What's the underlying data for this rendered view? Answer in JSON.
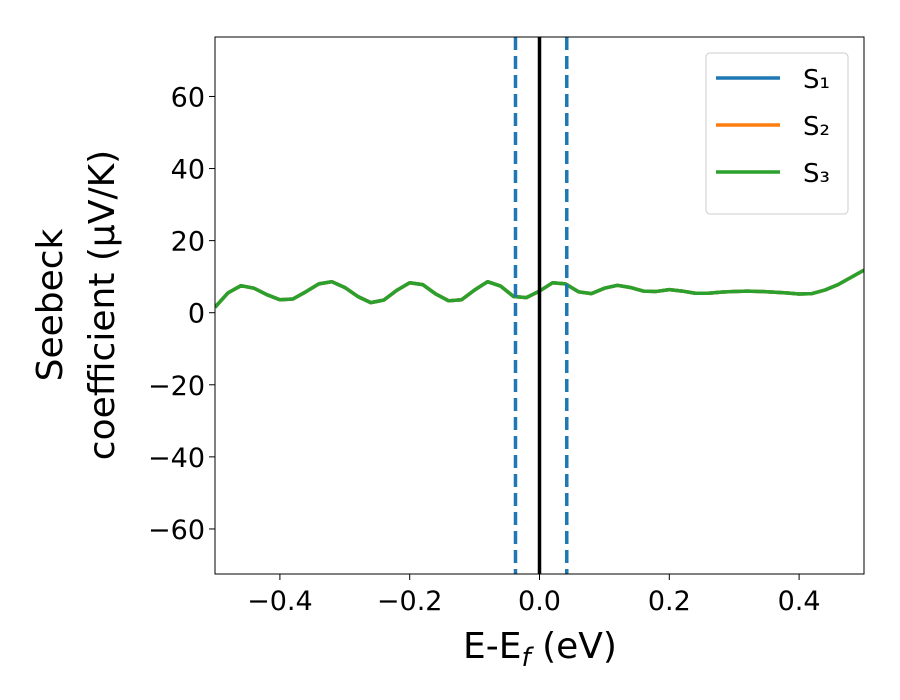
{
  "chart_data": {
    "type": "line",
    "xlabel": [
      "E-E",
      "f",
      " (eV)"
    ],
    "ylabel": [
      "Seebeck",
      "coefficient  (μV/K)"
    ],
    "x": [
      -0.5,
      -0.48,
      -0.46,
      -0.44,
      -0.42,
      -0.4,
      -0.38,
      -0.36,
      -0.34,
      -0.32,
      -0.3,
      -0.28,
      -0.26,
      -0.24,
      -0.22,
      -0.2,
      -0.18,
      -0.16,
      -0.14,
      -0.12,
      -0.1,
      -0.08,
      -0.06,
      -0.04,
      -0.02,
      0,
      0.02,
      0.04,
      0.06,
      0.08,
      0.1,
      0.12,
      0.14,
      0.16,
      0.18,
      0.2,
      0.22,
      0.24,
      0.26,
      0.28,
      0.3,
      0.32,
      0.34,
      0.36,
      0.38,
      0.4,
      0.42,
      0.44,
      0.46,
      0.48,
      0.5
    ],
    "series": [
      {
        "name": "S₁",
        "color": "#1f77b4",
        "values": [
          1.5,
          5.5,
          7.5,
          6.8,
          5.0,
          3.6,
          3.8,
          5.8,
          8.0,
          8.6,
          7.0,
          4.5,
          2.8,
          3.5,
          6.2,
          8.3,
          7.8,
          5.2,
          3.3,
          3.6,
          6.3,
          8.6,
          7.4,
          4.5,
          4.2,
          6.0,
          8.3,
          8.0,
          5.8,
          5.3,
          6.8,
          7.6,
          7.0,
          6.0,
          5.9,
          6.4,
          6.0,
          5.4,
          5.4,
          5.7,
          5.9,
          6.0,
          5.9,
          5.7,
          5.5,
          5.2,
          5.3,
          6.3,
          7.8,
          9.8,
          11.8
        ]
      },
      {
        "name": "S₂",
        "color": "#ff7f0e",
        "values": [
          1.5,
          5.5,
          7.5,
          6.8,
          5.0,
          3.6,
          3.8,
          5.8,
          8.0,
          8.6,
          7.0,
          4.5,
          2.8,
          3.5,
          6.2,
          8.3,
          7.8,
          5.2,
          3.3,
          3.6,
          6.3,
          8.6,
          7.4,
          4.5,
          4.2,
          6.0,
          8.3,
          8.0,
          5.8,
          5.3,
          6.8,
          7.6,
          7.0,
          6.0,
          5.9,
          6.4,
          6.0,
          5.4,
          5.4,
          5.7,
          5.9,
          6.0,
          5.9,
          5.7,
          5.5,
          5.2,
          5.3,
          6.3,
          7.8,
          9.8,
          11.8
        ]
      },
      {
        "name": "S₃",
        "color": "#2ca02c",
        "values": [
          1.5,
          5.5,
          7.5,
          6.8,
          5.0,
          3.6,
          3.8,
          5.8,
          8.0,
          8.6,
          7.0,
          4.5,
          2.8,
          3.5,
          6.2,
          8.3,
          7.8,
          5.2,
          3.3,
          3.6,
          6.3,
          8.6,
          7.4,
          4.5,
          4.2,
          6.0,
          8.3,
          8.0,
          5.8,
          5.3,
          6.8,
          7.6,
          7.0,
          6.0,
          5.9,
          6.4,
          6.0,
          5.4,
          5.4,
          5.7,
          5.9,
          6.0,
          5.9,
          5.7,
          5.5,
          5.2,
          5.3,
          6.3,
          7.8,
          9.8,
          11.8
        ]
      }
    ],
    "vlines": [
      {
        "x": -0.037,
        "color": "#1f77b4",
        "style": "dashed"
      },
      {
        "x": 0.042,
        "color": "#1f77b4",
        "style": "dashed"
      },
      {
        "x": 0,
        "color": "#000000",
        "style": "solid"
      }
    ],
    "xlim": [
      -0.5,
      0.5
    ],
    "ylim": [
      -72.5,
      76.5
    ],
    "xticks": [
      {
        "value": -0.4,
        "label": "−0.4"
      },
      {
        "value": -0.2,
        "label": "−0.2"
      },
      {
        "value": 0,
        "label": "0.0"
      },
      {
        "value": 0.2,
        "label": "0.2"
      },
      {
        "value": 0.4,
        "label": "0.4"
      }
    ],
    "yticks": [
      {
        "value": -60,
        "label": "−60"
      },
      {
        "value": -40,
        "label": "−40"
      },
      {
        "value": -20,
        "label": "−20"
      },
      0,
      20,
      40,
      60
    ],
    "legend": "upper right"
  }
}
